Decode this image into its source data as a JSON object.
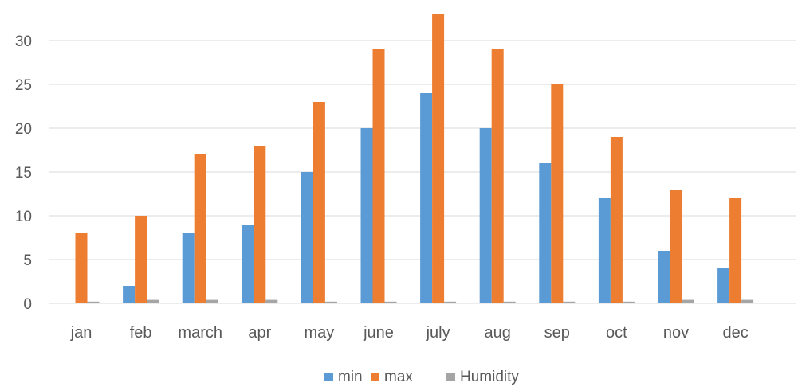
{
  "chart_data": {
    "type": "bar",
    "categories": [
      "jan",
      "feb",
      "march",
      "apr",
      "may",
      "june",
      "july",
      "aug",
      "sep",
      "oct",
      "nov",
      "dec"
    ],
    "series": [
      {
        "name": "min",
        "color": "#5b9bd5",
        "values": [
          0,
          2,
          8,
          9,
          15,
          20,
          24,
          20,
          16,
          12,
          6,
          4
        ]
      },
      {
        "name": "max",
        "color": "#ed7d31",
        "values": [
          8,
          10,
          17,
          18,
          23,
          29,
          33,
          29,
          25,
          19,
          13,
          12
        ]
      },
      {
        "name": "Humidity",
        "color": "#a5a5a5",
        "values": [
          0.2,
          0.4,
          0.4,
          0.4,
          0.2,
          0.2,
          0.2,
          0.2,
          0.2,
          0.2,
          0.4,
          0.4
        ]
      }
    ],
    "yticks": [
      "0",
      "5",
      "10",
      "15",
      "20",
      "25",
      "30"
    ],
    "ylim": [
      0,
      33
    ],
    "grid": true,
    "legend_position": "bottom"
  }
}
